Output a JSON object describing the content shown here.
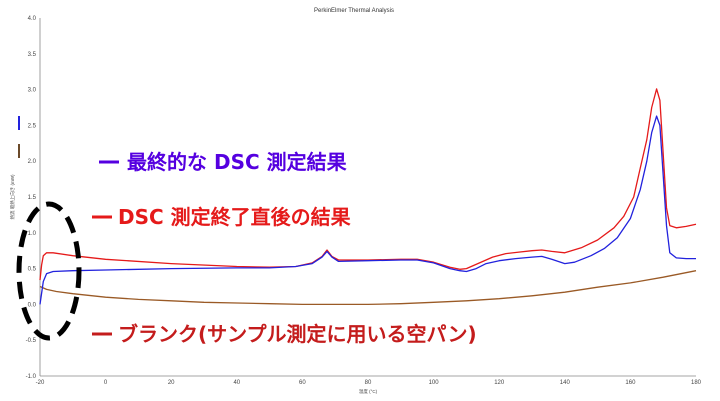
{
  "chart_data": {
    "type": "line",
    "title": "PerkinElmer Thermal Analysis",
    "xlabel": "温度 (°C)",
    "ylabel": "熱流 吸熱上向き (mW)",
    "xlim": [
      -20,
      180
    ],
    "ylim": [
      -1.0,
      4.0
    ],
    "xticks": [
      -20,
      0,
      20,
      40,
      60,
      80,
      100,
      120,
      140,
      160,
      180
    ],
    "yticks": [
      -1.0,
      -0.5,
      0,
      0.5,
      1.0,
      1.5,
      2.0,
      2.5,
      3.0,
      3.5,
      4.0
    ],
    "series": [
      {
        "name": "最終的な DSC 測定結果",
        "color": "#2222dd",
        "points": [
          [
            -20,
            0.0
          ],
          [
            -19,
            0.32
          ],
          [
            -18,
            0.43
          ],
          [
            -16,
            0.46
          ],
          [
            -10,
            0.47
          ],
          [
            0,
            0.48
          ],
          [
            20,
            0.5
          ],
          [
            40,
            0.51
          ],
          [
            50,
            0.51
          ],
          [
            58,
            0.53
          ],
          [
            63,
            0.57
          ],
          [
            66,
            0.66
          ],
          [
            67.5,
            0.74
          ],
          [
            69,
            0.66
          ],
          [
            71,
            0.6
          ],
          [
            80,
            0.61
          ],
          [
            90,
            0.62
          ],
          [
            95,
            0.62
          ],
          [
            100,
            0.58
          ],
          [
            105,
            0.5
          ],
          [
            108,
            0.47
          ],
          [
            110,
            0.46
          ],
          [
            113,
            0.5
          ],
          [
            116,
            0.57
          ],
          [
            120,
            0.61
          ],
          [
            125,
            0.64
          ],
          [
            130,
            0.66
          ],
          [
            133,
            0.67
          ],
          [
            136,
            0.63
          ],
          [
            140,
            0.57
          ],
          [
            143,
            0.59
          ],
          [
            148,
            0.68
          ],
          [
            152,
            0.78
          ],
          [
            156,
            0.93
          ],
          [
            160,
            1.2
          ],
          [
            163,
            1.6
          ],
          [
            165,
            2.0
          ],
          [
            166.5,
            2.4
          ],
          [
            168,
            2.63
          ],
          [
            169,
            2.5
          ],
          [
            170,
            1.8
          ],
          [
            171,
            1.1
          ],
          [
            172,
            0.72
          ],
          [
            174,
            0.65
          ],
          [
            177,
            0.64
          ],
          [
            180,
            0.64
          ]
        ]
      },
      {
        "name": "DSC 測定終了直後の結果",
        "color": "#e51a1a",
        "points": [
          [
            -20,
            0.34
          ],
          [
            -19.5,
            0.55
          ],
          [
            -19,
            0.68
          ],
          [
            -18,
            0.72
          ],
          [
            -16,
            0.72
          ],
          [
            -10,
            0.68
          ],
          [
            0,
            0.63
          ],
          [
            20,
            0.57
          ],
          [
            40,
            0.53
          ],
          [
            50,
            0.52
          ],
          [
            58,
            0.53
          ],
          [
            63,
            0.58
          ],
          [
            66,
            0.67
          ],
          [
            67.5,
            0.76
          ],
          [
            69,
            0.67
          ],
          [
            71,
            0.62
          ],
          [
            80,
            0.62
          ],
          [
            90,
            0.63
          ],
          [
            95,
            0.63
          ],
          [
            100,
            0.59
          ],
          [
            105,
            0.52
          ],
          [
            108,
            0.49
          ],
          [
            110,
            0.5
          ],
          [
            114,
            0.58
          ],
          [
            118,
            0.66
          ],
          [
            122,
            0.71
          ],
          [
            126,
            0.73
          ],
          [
            130,
            0.75
          ],
          [
            133,
            0.76
          ],
          [
            136,
            0.74
          ],
          [
            140,
            0.72
          ],
          [
            145,
            0.79
          ],
          [
            150,
            0.9
          ],
          [
            155,
            1.07
          ],
          [
            158,
            1.23
          ],
          [
            161,
            1.5
          ],
          [
            163,
            1.9
          ],
          [
            165,
            2.3
          ],
          [
            166.5,
            2.75
          ],
          [
            168,
            3.01
          ],
          [
            169,
            2.85
          ],
          [
            170,
            2.1
          ],
          [
            171,
            1.35
          ],
          [
            172,
            1.1
          ],
          [
            174,
            1.07
          ],
          [
            177,
            1.09
          ],
          [
            180,
            1.12
          ]
        ]
      },
      {
        "name": "ブランク(サンプル測定に用いる空パン)",
        "color": "#9a5a26",
        "points": [
          [
            -20,
            0.25
          ],
          [
            -18,
            0.21
          ],
          [
            -15,
            0.18
          ],
          [
            -10,
            0.15
          ],
          [
            0,
            0.1
          ],
          [
            10,
            0.07
          ],
          [
            20,
            0.05
          ],
          [
            30,
            0.03
          ],
          [
            40,
            0.02
          ],
          [
            50,
            0.01
          ],
          [
            60,
            0.0
          ],
          [
            70,
            0.0
          ],
          [
            80,
            0.0
          ],
          [
            90,
            0.01
          ],
          [
            100,
            0.03
          ],
          [
            110,
            0.05
          ],
          [
            120,
            0.08
          ],
          [
            130,
            0.12
          ],
          [
            140,
            0.17
          ],
          [
            150,
            0.24
          ],
          [
            160,
            0.3
          ],
          [
            170,
            0.38
          ],
          [
            180,
            0.47
          ]
        ]
      }
    ],
    "annotations": [
      {
        "label": "dashed-ellipse",
        "style": "dashed",
        "color": "#000000"
      }
    ],
    "grid": false,
    "legend": "inline labels"
  }
}
